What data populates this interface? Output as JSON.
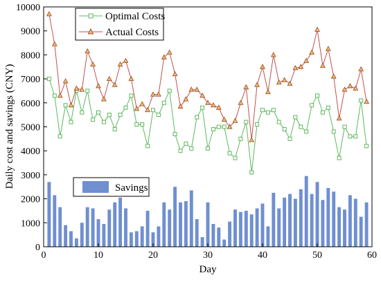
{
  "chart_data": {
    "type": "line",
    "xlabel": "Day",
    "ylabel": "Daily cost and savings (CNY)",
    "xlim": [
      0,
      60
    ],
    "ylim": [
      0,
      10000
    ],
    "x_ticks": [
      0,
      10,
      20,
      30,
      40,
      50,
      60
    ],
    "y_ticks": [
      0,
      1000,
      2000,
      3000,
      4000,
      5000,
      6000,
      7000,
      8000,
      9000,
      10000
    ],
    "x_tick_labels": [
      "0",
      "10",
      "20",
      "30",
      "40",
      "50",
      "60"
    ],
    "y_tick_labels": [
      "0",
      "1000",
      "2000",
      "3000",
      "4000",
      "5000",
      "6000",
      "7000",
      "8000",
      "9000",
      "10000"
    ],
    "days": [
      1,
      2,
      3,
      4,
      5,
      6,
      7,
      8,
      9,
      10,
      11,
      12,
      13,
      14,
      15,
      16,
      17,
      18,
      19,
      20,
      21,
      22,
      23,
      24,
      25,
      26,
      27,
      28,
      29,
      30,
      31,
      32,
      33,
      34,
      35,
      36,
      37,
      38,
      39,
      40,
      41,
      42,
      43,
      44,
      45,
      46,
      47,
      48,
      49,
      50,
      51,
      52,
      53,
      54,
      55,
      56,
      57,
      58,
      59
    ],
    "series": [
      {
        "name": "Optimal Costs",
        "kind": "line",
        "color": "#5cb85c",
        "marker": "square",
        "values": [
          7000,
          6300,
          4600,
          5900,
          5200,
          6500,
          5600,
          6500,
          5300,
          5600,
          5200,
          5500,
          4900,
          5500,
          5800,
          6300,
          5100,
          5100,
          4200,
          5700,
          5500,
          6000,
          6500,
          4700,
          4000,
          4300,
          4100,
          5400,
          5800,
          4100,
          4900,
          5000,
          5000,
          3900,
          3700,
          4500,
          5200,
          3100,
          5100,
          5700,
          5600,
          5700,
          5200,
          4900,
          4500,
          5400,
          5000,
          4800,
          5900,
          6300,
          5600,
          5800,
          4800,
          3700,
          5000,
          4600,
          4600,
          6100,
          4200
        ]
      },
      {
        "name": "Actual Costs",
        "kind": "line",
        "color": "#c0504d",
        "marker": "triangle",
        "values": [
          9700,
          8450,
          6300,
          6900,
          5900,
          6600,
          6550,
          8150,
          7600,
          6700,
          6150,
          7000,
          6750,
          7600,
          7750,
          7000,
          5750,
          5950,
          5700,
          6350,
          6350,
          7900,
          8100,
          7200,
          5850,
          6150,
          6550,
          6550,
          6300,
          6000,
          5900,
          5800,
          5300,
          5000,
          5250,
          6000,
          6650,
          4450,
          6750,
          7500,
          6450,
          8000,
          6850,
          6950,
          6800,
          7450,
          7500,
          7750,
          8100,
          9050,
          7550,
          8250,
          7100,
          5350,
          6550,
          6700,
          6600,
          7400,
          6050
        ]
      },
      {
        "name": "Savings",
        "kind": "bar",
        "color": "#6f8fd0",
        "values": [
          2700,
          2150,
          1650,
          900,
          650,
          350,
          1000,
          1650,
          1600,
          1150,
          950,
          1550,
          1850,
          2050,
          1600,
          600,
          650,
          850,
          1500,
          600,
          850,
          1850,
          1550,
          2500,
          1850,
          1900,
          2350,
          1150,
          400,
          1850,
          950,
          800,
          300,
          1050,
          1550,
          1450,
          1500,
          1350,
          1600,
          1800,
          850,
          2250,
          1600,
          2050,
          2200,
          2000,
          2400,
          2950,
          2200,
          2700,
          1950,
          2450,
          2300,
          1650,
          1550,
          2150,
          2000,
          1250,
          1850
        ]
      }
    ],
    "legend": {
      "upper": {
        "position": "top-left",
        "entries": [
          "Optimal Costs",
          "Actual Costs"
        ]
      },
      "lower": {
        "position": "middle-left",
        "entries": [
          "Savings"
        ]
      }
    },
    "grid": false
  }
}
